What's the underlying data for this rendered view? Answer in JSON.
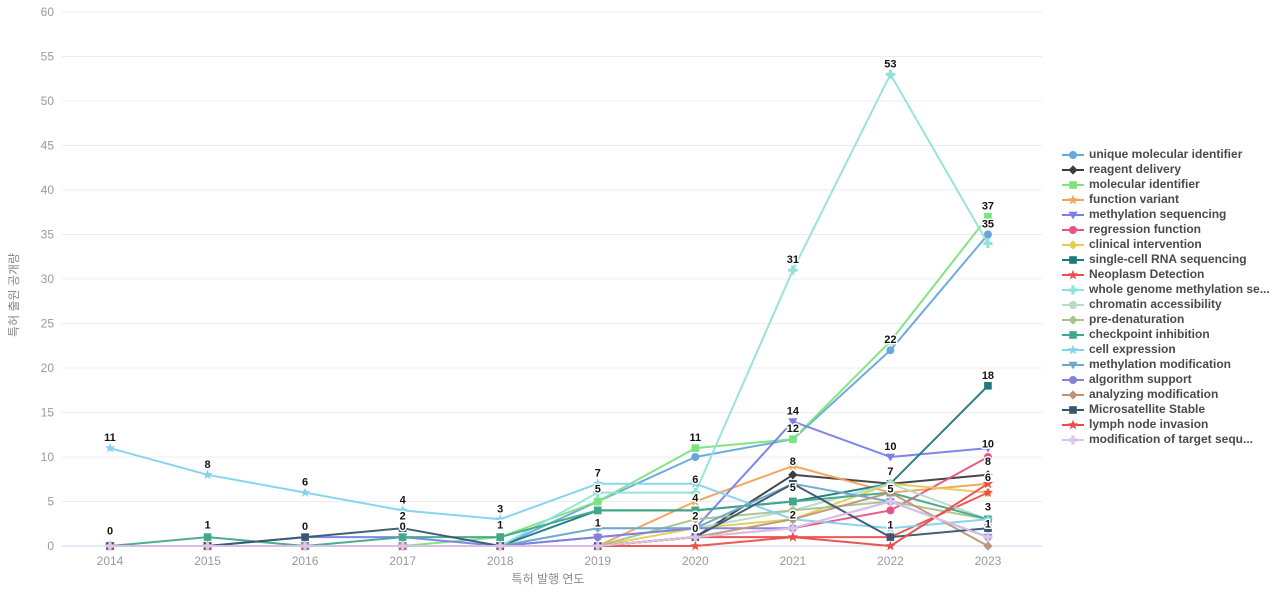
{
  "chart_data": {
    "type": "line",
    "title": "",
    "xlabel": "특허 발행 연도",
    "ylabel": "특허 출원 공개량",
    "x": [
      2014,
      2015,
      2016,
      2017,
      2018,
      2019,
      2020,
      2021,
      2022,
      2023
    ],
    "ylim": [
      0,
      60
    ],
    "ytick_step": 5,
    "grid": true,
    "legend_position": "right",
    "colors": {
      "grid": "#ececec",
      "zero_line": "#ccd6f0",
      "tick_text": "#9a9a9a",
      "label_text": "#141414"
    },
    "series": [
      {
        "name": "unique molecular identifier",
        "color": "#64a8dc",
        "marker": "circle",
        "values": [
          0,
          0,
          0,
          0,
          0,
          5,
          10,
          12,
          22,
          35
        ]
      },
      {
        "name": "reagent delivery",
        "color": "#3d3d3d",
        "marker": "diamond",
        "values": [
          0,
          0,
          0,
          0,
          0,
          0,
          1,
          8,
          7,
          8
        ]
      },
      {
        "name": "molecular identifier",
        "color": "#7de37d",
        "marker": "square",
        "values": [
          0,
          0,
          0,
          0,
          1,
          5,
          11,
          12,
          23,
          37
        ]
      },
      {
        "name": "function variant",
        "color": "#f4a259",
        "marker": "star",
        "values": [
          0,
          0,
          0,
          0,
          0,
          0,
          5,
          9,
          6,
          7
        ]
      },
      {
        "name": "methylation sequencing",
        "color": "#7a7eec",
        "marker": "triangle-down",
        "values": [
          0,
          0,
          1,
          1,
          0,
          1,
          2,
          14,
          10,
          11
        ]
      },
      {
        "name": "regression function",
        "color": "#ea5287",
        "marker": "circle",
        "values": [
          0,
          0,
          0,
          0,
          0,
          0,
          1,
          2,
          4,
          10
        ]
      },
      {
        "name": "clinical intervention",
        "color": "#e2cd55",
        "marker": "diamond",
        "values": [
          0,
          0,
          0,
          0,
          0,
          0,
          2,
          3,
          7,
          6
        ]
      },
      {
        "name": "single-cell RNA sequencing",
        "color": "#1d7a7e",
        "marker": "square",
        "values": [
          0,
          0,
          0,
          0,
          0,
          4,
          4,
          5,
          7,
          18
        ]
      },
      {
        "name": "Neoplasm Detection",
        "color": "#ee4f4c",
        "marker": "star",
        "values": [
          0,
          0,
          0,
          0,
          0,
          0,
          0,
          1,
          1,
          6
        ]
      },
      {
        "name": "whole genome methylation se...",
        "color": "#93e2da",
        "marker": "plus",
        "values": [
          0,
          0,
          0,
          0,
          0,
          6,
          6,
          31,
          53,
          34
        ]
      },
      {
        "name": "chromatin accessibility",
        "color": "#bad9c6",
        "marker": "circle",
        "values": [
          0,
          0,
          0,
          0,
          0,
          2,
          2,
          4,
          7,
          3
        ]
      },
      {
        "name": "pre-denaturation",
        "color": "#a9c28f",
        "marker": "diamond",
        "values": [
          0,
          0,
          0,
          0,
          0,
          0,
          3,
          4,
          5,
          3
        ]
      },
      {
        "name": "checkpoint inhibition",
        "color": "#41a98a",
        "marker": "square",
        "values": [
          0,
          1,
          0,
          1,
          1,
          4,
          4,
          5,
          6,
          3
        ]
      },
      {
        "name": "cell expression",
        "color": "#83d2ee",
        "marker": "star",
        "values": [
          11,
          8,
          6,
          4,
          3,
          7,
          7,
          3,
          2,
          3
        ]
      },
      {
        "name": "methylation modification",
        "color": "#6ea6d0",
        "marker": "triangle-down",
        "values": [
          0,
          0,
          0,
          0,
          0,
          2,
          2,
          7,
          5,
          1
        ]
      },
      {
        "name": "algorithm support",
        "color": "#8282d8",
        "marker": "circle",
        "values": [
          0,
          0,
          0,
          0,
          0,
          1,
          2,
          2,
          5,
          1
        ]
      },
      {
        "name": "analyzing modification",
        "color": "#bd9678",
        "marker": "diamond",
        "values": [
          0,
          0,
          0,
          0,
          0,
          0,
          1,
          3,
          6,
          0
        ]
      },
      {
        "name": "Microsatellite Stable",
        "color": "#38576f",
        "marker": "square",
        "values": [
          0,
          0,
          1,
          2,
          0,
          0,
          1,
          7,
          1,
          2
        ]
      },
      {
        "name": "lymph node invasion",
        "color": "#e94c49",
        "marker": "star",
        "values": [
          0,
          0,
          0,
          0,
          0,
          0,
          1,
          1,
          0,
          7
        ]
      },
      {
        "name": "modification of target sequ...",
        "color": "#d9c6e8",
        "marker": "plus",
        "values": [
          0,
          0,
          0,
          0,
          0,
          0,
          1,
          2,
          5,
          1
        ]
      }
    ],
    "point_labels": [
      {
        "x": 2014,
        "y": 11,
        "text": "11"
      },
      {
        "x": 2014,
        "y": 0.5,
        "text": "0"
      },
      {
        "x": 2015,
        "y": 8,
        "text": "8"
      },
      {
        "x": 2015,
        "y": 1.2,
        "text": "1"
      },
      {
        "x": 2016,
        "y": 6,
        "text": "6"
      },
      {
        "x": 2016,
        "y": 1.0,
        "text": "0"
      },
      {
        "x": 2017,
        "y": 4,
        "text": "4"
      },
      {
        "x": 2017,
        "y": 2.2,
        "text": "2"
      },
      {
        "x": 2017,
        "y": 1.0,
        "text": "0"
      },
      {
        "x": 2018,
        "y": 3,
        "text": "3"
      },
      {
        "x": 2018,
        "y": 1.2,
        "text": "1"
      },
      {
        "x": 2019,
        "y": 7,
        "text": "7"
      },
      {
        "x": 2019,
        "y": 5.2,
        "text": "5"
      },
      {
        "x": 2019,
        "y": 1.4,
        "text": "1"
      },
      {
        "x": 2020,
        "y": 11,
        "text": "11"
      },
      {
        "x": 2020,
        "y": 6.3,
        "text": "6"
      },
      {
        "x": 2020,
        "y": 4.2,
        "text": "4"
      },
      {
        "x": 2020,
        "y": 2.2,
        "text": "2"
      },
      {
        "x": 2020,
        "y": 0.8,
        "text": "0"
      },
      {
        "x": 2021,
        "y": 31,
        "text": "31"
      },
      {
        "x": 2021,
        "y": 14,
        "text": "14"
      },
      {
        "x": 2021,
        "y": 12,
        "text": "12"
      },
      {
        "x": 2021,
        "y": 8.3,
        "text": "8"
      },
      {
        "x": 2021,
        "y": 5.4,
        "text": "5"
      },
      {
        "x": 2021,
        "y": 2.3,
        "text": "2"
      },
      {
        "x": 2022,
        "y": 53,
        "text": "53"
      },
      {
        "x": 2022,
        "y": 22,
        "text": "22"
      },
      {
        "x": 2022,
        "y": 10,
        "text": "10"
      },
      {
        "x": 2022,
        "y": 7.2,
        "text": "7"
      },
      {
        "x": 2022,
        "y": 5.2,
        "text": "5"
      },
      {
        "x": 2022,
        "y": 1.2,
        "text": "1"
      },
      {
        "x": 2023,
        "y": 37,
        "text": "37"
      },
      {
        "x": 2023,
        "y": 35,
        "text": "35"
      },
      {
        "x": 2023,
        "y": 18,
        "text": "18"
      },
      {
        "x": 2023,
        "y": 10.3,
        "text": "10"
      },
      {
        "x": 2023,
        "y": 8.3,
        "text": "8"
      },
      {
        "x": 2023,
        "y": 6.5,
        "text": "6"
      },
      {
        "x": 2023,
        "y": 3.2,
        "text": "3"
      },
      {
        "x": 2023,
        "y": 1.3,
        "text": "1"
      }
    ]
  }
}
